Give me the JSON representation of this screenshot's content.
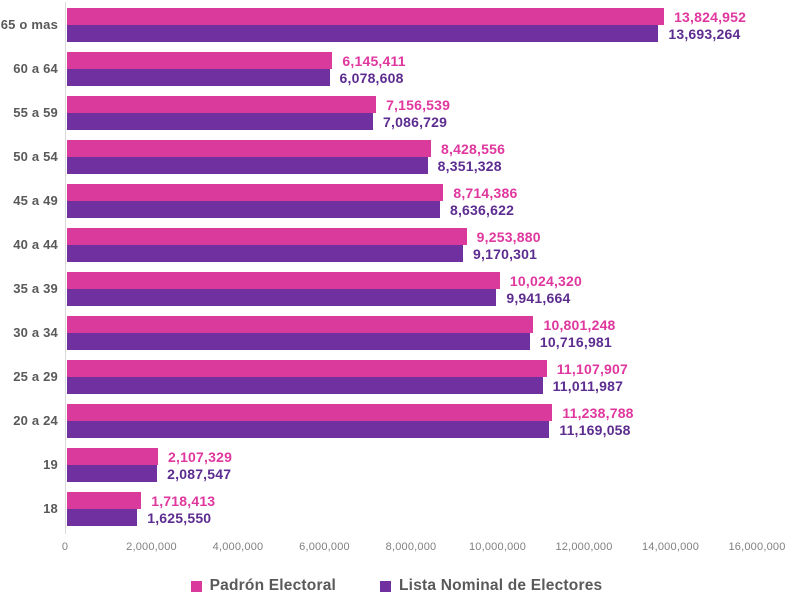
{
  "chart_data": {
    "type": "bar",
    "orientation": "horizontal",
    "title": "",
    "categories": [
      "65 o mas",
      "60 a 64",
      "55 a 59",
      "50 a 54",
      "45 a 49",
      "40 a 44",
      "35 a 39",
      "30 a 34",
      "25 a 29",
      "20 a 24",
      "19",
      "18"
    ],
    "series": [
      {
        "name": "Padrón Electoral",
        "color": "#DA3A9C",
        "label_color": "#E0379E",
        "values": [
          13824952,
          6145411,
          7156539,
          8428556,
          8714386,
          9253880,
          10024320,
          10801248,
          11107907,
          11238788,
          2107329,
          1718413
        ],
        "values_formatted": [
          "13,824,952",
          "6,145,411",
          "7,156,539",
          "8,428,556",
          "8,714,386",
          "9,253,880",
          "10,024,320",
          "10,801,248",
          "11,107,907",
          "11,238,788",
          "2,107,329",
          "1,718,413"
        ]
      },
      {
        "name": "Lista Nominal de Electores",
        "color": "#7030A0",
        "label_color": "#5D2C90",
        "values": [
          13693264,
          6078608,
          7086729,
          8351328,
          8636622,
          9170301,
          9941664,
          10716981,
          11011987,
          11169058,
          2087547,
          1625550
        ],
        "values_formatted": [
          "13,693,264",
          "6,078,608",
          "7,086,729",
          "8,351,328",
          "8,636,622",
          "9,170,301",
          "9,941,664",
          "10,716,981",
          "11,011,987",
          "11,169,058",
          "2,087,547",
          "1,625,550"
        ]
      }
    ],
    "xlim": [
      0,
      16000000
    ],
    "x_tick_labels": [
      "0",
      "2,000,000",
      "4,000,000",
      "6,000,000",
      "8,000,000",
      "10,000,000",
      "12,000,000",
      "14,000,000",
      "16,000,000"
    ],
    "legend_position": "bottom",
    "grid": false,
    "axis_line_color": "#D9D9D9",
    "category_label_color": "#595959",
    "axis_tick_color": "#808080",
    "legend_text_color": "#595959",
    "background_color": "#FFFFFF"
  }
}
